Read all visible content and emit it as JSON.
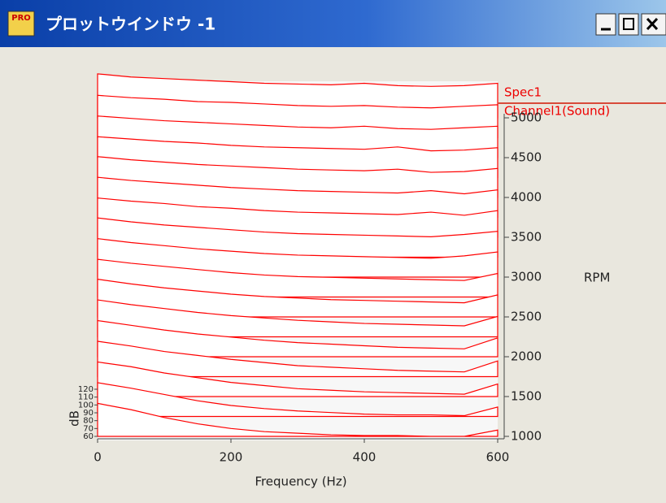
{
  "window": {
    "title": "プロットウインドウ -1",
    "icon_text": "PRO"
  },
  "chart_data": {
    "type": "waterfall",
    "x_label": "Frequency (Hz)",
    "y_label": "RPM",
    "z_label": "dB",
    "legend": [
      "Spec1",
      "Channel1(Sound)"
    ],
    "color": "#ff0000",
    "x": [
      0,
      50,
      100,
      150,
      200,
      250,
      300,
      350,
      400,
      450,
      500,
      550,
      600
    ],
    "xlim": [
      0,
      600
    ],
    "xticks": [
      0,
      200,
      400,
      600
    ],
    "ylim": [
      1000,
      5000
    ],
    "yticks": [
      1000,
      1500,
      2000,
      2500,
      3000,
      3500,
      4000,
      4500,
      5000
    ],
    "zlim": [
      60,
      120
    ],
    "zticks": [
      60,
      70,
      80,
      90,
      100,
      110,
      120
    ],
    "traces": [
      {
        "rpm": 5000,
        "values": [
          116,
          112,
          110,
          108,
          106,
          104,
          103,
          102,
          104,
          101,
          100,
          101,
          104
        ]
      },
      {
        "rpm": 4750,
        "values": [
          114,
          111,
          109,
          106,
          105,
          103,
          101,
          100,
          101,
          99,
          98,
          100,
          102
        ]
      },
      {
        "rpm": 4500,
        "values": [
          113,
          110,
          107,
          105,
          103,
          101,
          99,
          98,
          100,
          97,
          96,
          98,
          100
        ]
      },
      {
        "rpm": 4250,
        "values": [
          112,
          109,
          106,
          104,
          101,
          99,
          98,
          97,
          96,
          99,
          94,
          95,
          98
        ]
      },
      {
        "rpm": 4000,
        "values": [
          112,
          108,
          105,
          102,
          100,
          98,
          96,
          95,
          94,
          96,
          92,
          93,
          97
        ]
      },
      {
        "rpm": 3750,
        "values": [
          111,
          107,
          104,
          101,
          98,
          96,
          94,
          93,
          92,
          91,
          94,
          90,
          95
        ]
      },
      {
        "rpm": 3500,
        "values": [
          110,
          106,
          103,
          99,
          97,
          94,
          92,
          91,
          90,
          89,
          92,
          88,
          94
        ]
      },
      {
        "rpm": 3250,
        "values": [
          110,
          105,
          101,
          98,
          95,
          92,
          90,
          89,
          88,
          87,
          86,
          89,
          93
        ]
      },
      {
        "rpm": 3000,
        "values": [
          109,
          104,
          100,
          96,
          93,
          90,
          88,
          87,
          86,
          85,
          84,
          87,
          92
        ]
      },
      {
        "rpm": 2750,
        "values": [
          108,
          103,
          99,
          95,
          91,
          88,
          86,
          85,
          84,
          83,
          82,
          81,
          90
        ]
      },
      {
        "rpm": 2500,
        "values": [
          108,
          102,
          97,
          93,
          89,
          86,
          84,
          82,
          81,
          80,
          79,
          78,
          88
        ]
      },
      {
        "rpm": 2250,
        "values": [
          107,
          101,
          96,
          91,
          87,
          84,
          81,
          79,
          77,
          76,
          75,
          74,
          86
        ]
      },
      {
        "rpm": 2000,
        "values": [
          106,
          100,
          94,
          89,
          85,
          81,
          78,
          76,
          74,
          72,
          71,
          70,
          84
        ]
      },
      {
        "rpm": 1750,
        "values": [
          105,
          99,
          92,
          87,
          82,
          78,
          74,
          72,
          70,
          68,
          67,
          66,
          80
        ]
      },
      {
        "rpm": 1500,
        "values": [
          104,
          98,
          90,
          84,
          78,
          74,
          70,
          68,
          66,
          65,
          64,
          63,
          76
        ]
      },
      {
        "rpm": 1250,
        "values": [
          103,
          96,
          88,
          80,
          74,
          70,
          67,
          65,
          63,
          62,
          62,
          61,
          72
        ]
      },
      {
        "rpm": 1000,
        "values": [
          102,
          94,
          84,
          76,
          70,
          66,
          64,
          62,
          61,
          61,
          60,
          60,
          68
        ]
      }
    ]
  }
}
